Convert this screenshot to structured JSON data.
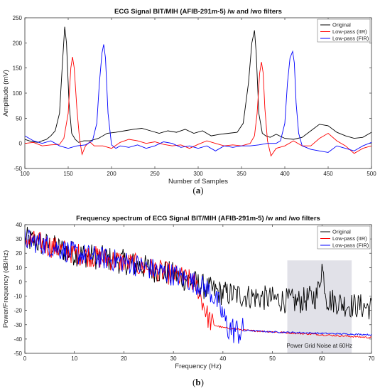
{
  "chart_data": [
    {
      "type": "line",
      "title": "ECG Signal BIT/MIH (AFIB-291m-5) /w and /wo filters",
      "xlabel": "Number of Samples",
      "ylabel": "Amplitude (mV)",
      "xlim": [
        100,
        500
      ],
      "ylim": [
        -50,
        250
      ],
      "xticks": [
        "100",
        "150",
        "200",
        "250",
        "300",
        "350",
        "400",
        "450",
        "500"
      ],
      "yticks": [
        "-50",
        "0",
        "50",
        "100",
        "150",
        "200",
        "250"
      ],
      "legend": {
        "position": "top-right",
        "entries": [
          "Original",
          "Low-pass (IIR)",
          "Low-pass (FIR)"
        ]
      },
      "caption": "(a)",
      "series": [
        {
          "name": "Original",
          "color": "#000000",
          "x": [
            100,
            105,
            110,
            115,
            120,
            125,
            130,
            135,
            140,
            143,
            146,
            148,
            151,
            154,
            158,
            162,
            168,
            175,
            185,
            195,
            205,
            215,
            225,
            235,
            245,
            255,
            265,
            275,
            285,
            295,
            305,
            315,
            325,
            335,
            345,
            352,
            358,
            362,
            365,
            367,
            370,
            374,
            378,
            383,
            390,
            400,
            410,
            420,
            430,
            440,
            450,
            460,
            470,
            480,
            490,
            500
          ],
          "y": [
            8,
            5,
            3,
            2,
            5,
            8,
            15,
            25,
            60,
            150,
            232,
            200,
            80,
            20,
            8,
            2,
            5,
            5,
            10,
            20,
            22,
            25,
            28,
            30,
            25,
            20,
            25,
            22,
            28,
            20,
            25,
            15,
            18,
            20,
            22,
            40,
            120,
            200,
            225,
            180,
            60,
            20,
            15,
            12,
            18,
            10,
            8,
            12,
            25,
            38,
            35,
            22,
            15,
            10,
            12,
            22
          ]
        },
        {
          "name": "Low-pass (IIR)",
          "color": "#ff0000",
          "x": [
            100,
            110,
            120,
            130,
            140,
            145,
            150,
            153,
            155,
            157,
            160,
            163,
            166,
            170,
            175,
            180,
            190,
            200,
            210,
            220,
            230,
            240,
            250,
            260,
            270,
            280,
            290,
            300,
            310,
            320,
            330,
            340,
            350,
            360,
            365,
            368,
            371,
            373,
            375,
            377,
            380,
            384,
            390,
            400,
            410,
            420,
            430,
            440,
            450,
            460,
            470,
            480,
            490,
            500
          ],
          "y": [
            0,
            2,
            -5,
            -3,
            -2,
            10,
            60,
            150,
            172,
            150,
            70,
            10,
            -22,
            -5,
            3,
            -5,
            -5,
            -10,
            2,
            8,
            5,
            0,
            3,
            -2,
            -5,
            -3,
            -10,
            -2,
            5,
            0,
            -5,
            -3,
            -5,
            0,
            15,
            60,
            140,
            162,
            140,
            70,
            5,
            -25,
            -10,
            -5,
            5,
            -5,
            -5,
            10,
            20,
            5,
            -5,
            -20,
            -10,
            -5
          ]
        },
        {
          "name": "Low-pass (FIR)",
          "color": "#0000ff",
          "x": [
            100,
            110,
            120,
            130,
            140,
            150,
            160,
            170,
            178,
            183,
            186,
            189,
            191,
            193,
            196,
            200,
            205,
            210,
            220,
            230,
            240,
            250,
            260,
            270,
            280,
            290,
            300,
            310,
            320,
            330,
            340,
            350,
            360,
            370,
            380,
            390,
            395,
            400,
            403,
            406,
            409,
            411,
            413,
            416,
            420,
            430,
            440,
            450,
            460,
            470,
            480,
            490,
            500
          ],
          "y": [
            15,
            5,
            0,
            5,
            -5,
            -10,
            -5,
            -3,
            5,
            40,
            120,
            180,
            197,
            170,
            60,
            -3,
            -10,
            -5,
            -8,
            -3,
            -10,
            -5,
            3,
            0,
            -8,
            -5,
            -10,
            -5,
            -15,
            -5,
            -8,
            -5,
            -5,
            -3,
            0,
            0,
            5,
            40,
            120,
            170,
            183,
            160,
            80,
            20,
            -5,
            -12,
            -15,
            -18,
            -5,
            -10,
            -15,
            -5,
            2
          ]
        }
      ]
    },
    {
      "type": "line",
      "title": "Frequency spectrum of ECG Signal BIT/MIH (AFIB-291m-5) /w and /wo filters",
      "xlabel": "Frequency (Hz)",
      "ylabel": "Power/Frequency (dB/Hz)",
      "xlim": [
        0,
        70
      ],
      "ylim": [
        -50,
        40
      ],
      "xticks": [
        "0",
        "10",
        "20",
        "30",
        "40",
        "50",
        "60",
        "70"
      ],
      "yticks": [
        "-50",
        "-40",
        "-30",
        "-20",
        "-10",
        "0",
        "10",
        "20",
        "30",
        "40"
      ],
      "legend": {
        "position": "top-right",
        "entries": [
          "Original",
          "Low-pass (IIR)",
          "Low-pass (FIR)"
        ]
      },
      "annotation": {
        "text": "Power Grid Noise at 60Hz",
        "x_range": [
          53,
          66
        ],
        "y_range": [
          -50,
          15
        ]
      },
      "caption": "(b)",
      "series": [
        {
          "name": "Original",
          "color": "#000000",
          "x": [
            0,
            10,
            20,
            30,
            34,
            37,
            40,
            45,
            50,
            55,
            59,
            60,
            61,
            65,
            70
          ],
          "y": [
            30,
            20,
            14,
            5,
            0,
            -5,
            -8,
            -10,
            -12,
            -14,
            -10,
            11,
            -12,
            -16,
            -18
          ],
          "noise": 9
        },
        {
          "name": "Low-pass (IIR)",
          "color": "#ff0000",
          "x": [
            0,
            10,
            20,
            30,
            34,
            35,
            36,
            37,
            38,
            40,
            45,
            50,
            55,
            60,
            65,
            70
          ],
          "y": [
            30,
            20,
            14,
            5,
            0,
            -5,
            -15,
            -25,
            -30,
            -32,
            -34,
            -35,
            -36,
            -37,
            -38,
            -39
          ],
          "noise": 8
        },
        {
          "name": "Low-pass (FIR)",
          "color": "#0000ff",
          "x": [
            0,
            10,
            20,
            30,
            34,
            37,
            39,
            41,
            43,
            45,
            50,
            55,
            60,
            65,
            70
          ],
          "y": [
            30,
            20,
            14,
            5,
            0,
            -5,
            -15,
            -32,
            -35,
            -34,
            -35,
            -35.5,
            -36,
            -36.5,
            -37
          ],
          "noise": 8
        }
      ]
    }
  ]
}
